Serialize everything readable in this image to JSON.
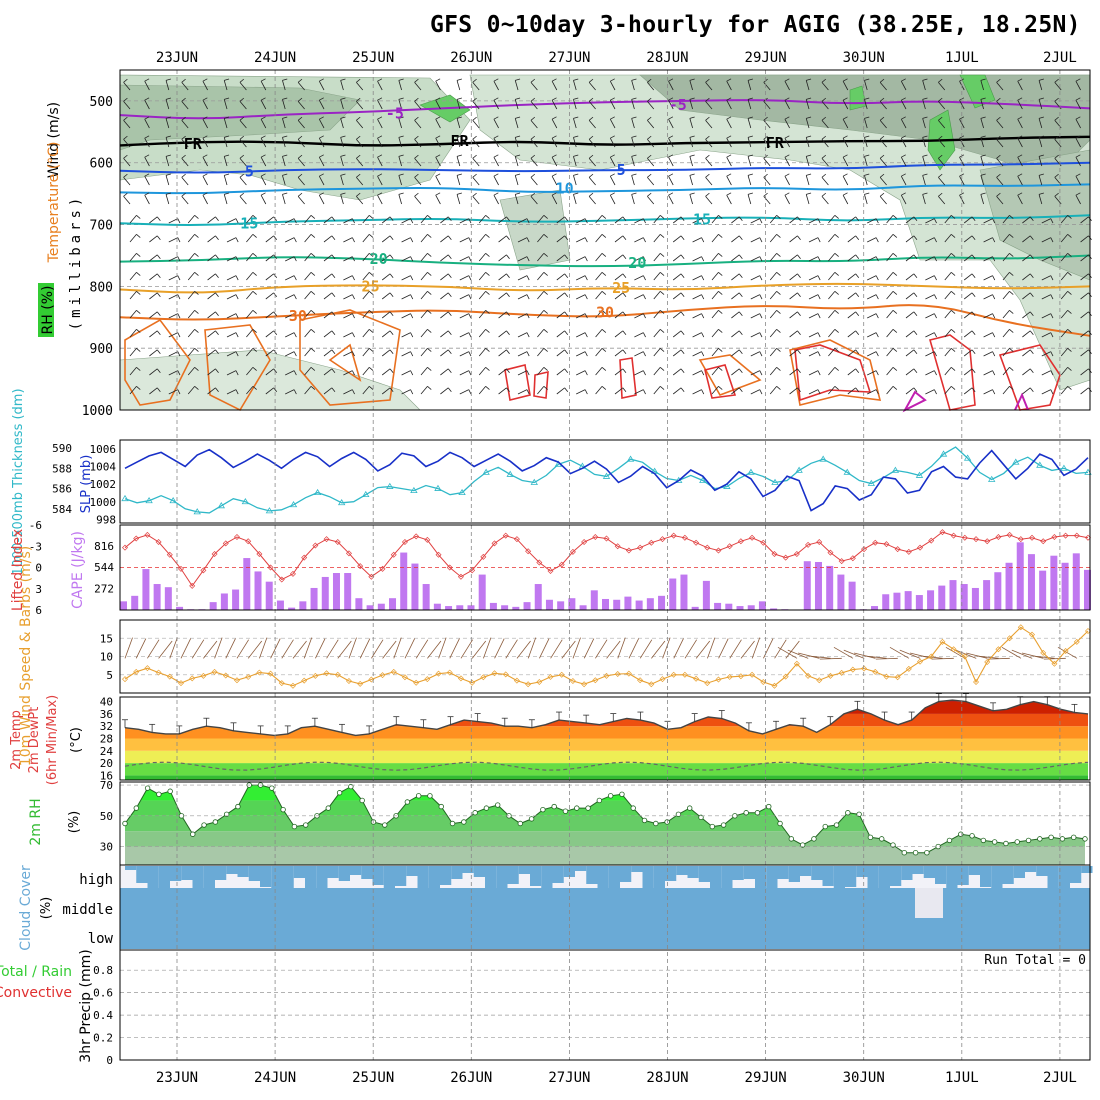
{
  "title": "GFS 0~10day 3-hourly for AGIG (38.25E, 18.25N)",
  "chart_data": {
    "type": "meteogram",
    "dates": [
      "23JUN",
      "24JUN",
      "25JUN",
      "26JUN",
      "27JUN",
      "28JUN",
      "29JUN",
      "30JUN",
      "1JUL",
      "2JUL"
    ],
    "panels": {
      "upper": {
        "ylabel_wind": "Wind (m/s)",
        "ylabel_temp": "Temperature (°C)",
        "ylabel_rh": "RH (%)",
        "ylabel_p": "(millibars)",
        "y_ticks": [
          "500",
          "600",
          "700",
          "800",
          "900",
          "1000"
        ],
        "contours": [
          {
            "label": "-5",
            "color": "#9a24c4",
            "p": [
              523,
              530,
              522,
              518,
              512,
              506,
              502,
              500,
              498,
              505,
              500,
              505,
              512
            ]
          },
          {
            "label": "FR",
            "color": "#000000",
            "p": [
              572,
              566,
              566,
              573,
              570,
              565,
              572,
              568,
              567,
              565,
              565,
              560,
              558
            ]
          },
          {
            "label": "5",
            "color": "#1e50dc",
            "p": [
              613,
              617,
              612,
              610,
              612,
              614,
              612,
              612,
              608,
              610,
              603,
              603,
              600
            ]
          },
          {
            "label": "10",
            "color": "#1e96dc",
            "p": [
              648,
              650,
              644,
              642,
              640,
              648,
              646,
              644,
              640,
              645,
              636,
              638,
              635
            ]
          },
          {
            "label": "15",
            "color": "#18b0b8",
            "p": [
              698,
              702,
              695,
              693,
              690,
              696,
              694,
              690,
              688,
              695,
              688,
              690,
              685
            ]
          },
          {
            "label": "20",
            "color": "#18b080",
            "p": [
              760,
              758,
              752,
              755,
              762,
              766,
              768,
              764,
              758,
              760,
              752,
              756,
              750
            ]
          },
          {
            "label": "25",
            "color": "#e8a028",
            "p": [
              805,
              812,
              800,
              798,
              800,
              808,
              802,
              806,
              798,
              795,
              800,
              804,
              800
            ]
          },
          {
            "label": "30",
            "color": "#e87020",
            "p": [
              850,
              855,
              848,
              842,
              838,
              846,
              850,
              838,
              830,
              838,
              826,
              860,
              880
            ]
          }
        ],
        "contour_labels": [
          {
            "text": "-5",
            "i": 3.4,
            "p": 520
          },
          {
            "text": "-5",
            "i": 6.9,
            "p": 507
          },
          {
            "text": "FR",
            "i": 0.9,
            "p": 570
          },
          {
            "text": "FR",
            "i": 4.2,
            "p": 565
          },
          {
            "text": "FR",
            "i": 8.1,
            "p": 568
          },
          {
            "text": "5",
            "i": 1.6,
            "p": 614
          },
          {
            "text": "5",
            "i": 6.2,
            "p": 612
          },
          {
            "text": "10",
            "i": 5.5,
            "p": 642
          },
          {
            "text": "15",
            "i": 1.6,
            "p": 698
          },
          {
            "text": "15",
            "i": 7.2,
            "p": 692
          },
          {
            "text": "20",
            "i": 3.2,
            "p": 756
          },
          {
            "text": "20",
            "i": 6.4,
            "p": 762
          },
          {
            "text": "25",
            "i": 3.1,
            "p": 800
          },
          {
            "text": "25",
            "i": 6.2,
            "p": 803
          },
          {
            "text": "30",
            "i": 2.2,
            "p": 848
          },
          {
            "text": "30",
            "i": 6.0,
            "p": 842
          }
        ]
      },
      "thickness_slp": {
        "ylabel_left": "1000-500mb Thickness (dm)",
        "ylabel_right": "SLP (mb)",
        "left_ticks": [
          "590",
          "588",
          "586",
          "584"
        ],
        "right_ticks": [
          "1006",
          "1004",
          "1002",
          "1000",
          "998"
        ],
        "slp": [
          1003.8,
          1004.5,
          1005.2,
          1005.6,
          1004.8,
          1004.0,
          1005.3,
          1005.9,
          1005.0,
          1003.9,
          1004.6,
          1005.4,
          1004.7,
          1003.8,
          1004.8,
          1005.6,
          1005.1,
          1004.0,
          1004.9,
          1005.6,
          1004.8,
          1003.5,
          1004.2,
          1005.5,
          1005.2,
          1004.0,
          1004.6,
          1005.6,
          1005.0,
          1004.0,
          1004.7,
          1005.4,
          1004.6,
          1003.5,
          1004.1,
          1005.0,
          1004.5,
          1003.2,
          1003.8,
          1004.6,
          1003.7,
          1002.2,
          1002.9,
          1004.0,
          1003.2,
          1001.6,
          1002.4,
          1003.6,
          1002.9,
          1001.3,
          1002.0,
          1003.4,
          1002.6,
          1000.6,
          1001.3,
          1002.9,
          1002.4,
          999.0,
          999.8,
          1001.8,
          1001.5,
          1000.2,
          1000.8,
          1002.8,
          1002.6,
          1001.0,
          1001.3,
          1003.4,
          1004.0,
          1002.8,
          1002.6,
          1004.4,
          1005.8,
          1004.2,
          1002.6,
          1003.8,
          1005.4,
          1004.8,
          1003.0,
          1003.7,
          1005.0
        ],
        "thickness": [
          585.0,
          584.6,
          584.8,
          585.3,
          584.8,
          584.0,
          583.7,
          583.6,
          584.3,
          585.0,
          584.7,
          584.1,
          583.8,
          583.9,
          584.4,
          585.1,
          585.6,
          585.2,
          584.6,
          584.7,
          585.4,
          586.1,
          586.2,
          586.0,
          585.8,
          586.3,
          586.0,
          585.4,
          585.6,
          586.7,
          587.6,
          588.1,
          587.4,
          586.8,
          586.6,
          587.3,
          588.4,
          588.8,
          588.2,
          587.4,
          587.2,
          588.0,
          588.9,
          588.6,
          587.7,
          587.0,
          586.8,
          587.3,
          586.8,
          586.0,
          586.2,
          587.0,
          587.6,
          587.2,
          586.6,
          586.8,
          587.8,
          588.5,
          588.9,
          588.3,
          587.6,
          586.8,
          586.5,
          587.1,
          587.8,
          587.6,
          587.3,
          588.2,
          589.4,
          590.1,
          589.0,
          587.6,
          586.9,
          587.5,
          588.6,
          589.1,
          588.3,
          587.8,
          588.0,
          587.5,
          587.6
        ]
      },
      "cape_li": {
        "ylabel_left": "Lifted Index",
        "ylabel_right": "CAPE (J/kg)",
        "left_ticks": [
          "-6",
          "-3",
          "0",
          "3",
          "6"
        ],
        "right_ticks": [
          "816",
          "544",
          "272"
        ],
        "cape": [
          110,
          180,
          520,
          330,
          290,
          40,
          10,
          10,
          100,
          210,
          260,
          660,
          490,
          360,
          120,
          30,
          110,
          280,
          420,
          470,
          470,
          150,
          60,
          80,
          150,
          730,
          590,
          330,
          80,
          50,
          60,
          60,
          450,
          90,
          60,
          40,
          100,
          330,
          130,
          110,
          150,
          60,
          250,
          140,
          130,
          170,
          120,
          150,
          180,
          400,
          450,
          40,
          370,
          90,
          80,
          50,
          60,
          110,
          20,
          10,
          0,
          620,
          610,
          560,
          450,
          360,
          10,
          50,
          200,
          220,
          240,
          190,
          250,
          310,
          380,
          330,
          280,
          380,
          480,
          600,
          860,
          710,
          500,
          690,
          600,
          720,
          510
        ],
        "li": [
          -2.8,
          -4.1,
          -4.6,
          -3.6,
          -1.8,
          0.2,
          2.6,
          0.4,
          -1.9,
          -3.4,
          -4.3,
          -3.7,
          -1.9,
          0.0,
          1.7,
          0.9,
          -1.4,
          -3.1,
          -4.0,
          -3.6,
          -2.0,
          -0.2,
          1.3,
          0.2,
          -1.8,
          -3.6,
          -4.4,
          -3.9,
          -1.8,
          0.0,
          1.3,
          0.4,
          -1.5,
          -3.4,
          -4.5,
          -4.0,
          -2.3,
          -0.7,
          0.5,
          -0.4,
          -2.2,
          -3.6,
          -4.3,
          -4.1,
          -3.0,
          -2.4,
          -2.8,
          -3.5,
          -4.0,
          -4.5,
          -4.2,
          -3.5,
          -2.8,
          -2.4,
          -3.0,
          -3.7,
          -4.2,
          -3.5,
          -1.9,
          -1.4,
          -1.9,
          -3.2,
          -3.6,
          -2.1,
          -0.9,
          -1.3,
          -2.6,
          -3.5,
          -3.3,
          -2.6,
          -2.2,
          -2.8,
          -3.8,
          -5.0,
          -4.5,
          -4.2,
          -4.0,
          -3.7,
          -4.3,
          -4.6,
          -4.0,
          -4.2,
          -3.7,
          -4.3,
          -4.5,
          -4.5,
          -4.2
        ]
      },
      "wind10m": {
        "ylabel": "10m Wind Speed & Barbs (m/s)",
        "y_ticks": [
          "15",
          "10",
          "5"
        ],
        "speed": [
          3.8,
          5.8,
          6.8,
          5.6,
          4.5,
          2.7,
          4.0,
          4.7,
          5.8,
          4.8,
          3.5,
          4.4,
          5.6,
          5.3,
          2.7,
          2.0,
          3.4,
          4.7,
          5.4,
          5.0,
          3.3,
          2.5,
          3.7,
          4.9,
          5.8,
          4.3,
          2.8,
          3.8,
          5.3,
          5.6,
          4.0,
          2.8,
          4.3,
          5.4,
          5.1,
          3.4,
          2.4,
          3.0,
          4.4,
          5.0,
          3.3,
          2.4,
          3.5,
          4.7,
          5.2,
          5.3,
          3.5,
          2.4,
          3.8,
          5.0,
          5.0,
          3.9,
          2.7,
          3.7,
          4.4,
          4.6,
          5.0,
          3.0,
          2.0,
          4.5,
          8.0,
          4.7,
          3.5,
          4.7,
          5.5,
          6.4,
          6.7,
          5.8,
          4.5,
          4.3,
          6.6,
          8.6,
          10.0,
          14.0,
          12.0,
          10.0,
          3.0,
          8.5,
          12.0,
          15.0,
          18.0,
          16.0,
          11.0,
          8.0,
          11.5,
          14.0,
          17.0
        ]
      },
      "temp2m": {
        "ylabel": "2m Temp 2m DewPt (6hr Min/Max) (°C)",
        "y_ticks": [
          "40",
          "36",
          "32",
          "28",
          "24",
          "20",
          "16"
        ],
        "temp": [
          31.5,
          31.0,
          30.0,
          29.5,
          29.5,
          31.0,
          32.0,
          31.5,
          30.5,
          30.0,
          29.5,
          29.0,
          29.5,
          31.5,
          32.0,
          31.0,
          30.0,
          29.0,
          29.5,
          31.0,
          32.5,
          32.0,
          31.5,
          31.0,
          32.5,
          34.0,
          33.5,
          33.0,
          32.0,
          32.0,
          31.5,
          32.5,
          34.0,
          33.5,
          33.0,
          32.5,
          33.5,
          34.5,
          34.0,
          33.0,
          31.0,
          31.5,
          33.5,
          35.0,
          34.5,
          33.0,
          30.5,
          29.5,
          31.0,
          32.5,
          32.0,
          30.0,
          32.5,
          36.0,
          37.5,
          36.0,
          34.0,
          32.5,
          34.0,
          38.0,
          40.0,
          40.5,
          40.0,
          38.5,
          37.0,
          37.5,
          39.0,
          40.0,
          39.0,
          37.5,
          36.5,
          36.0
        ]
      },
      "rh2m": {
        "ylabel": "2m RH (%)",
        "y_ticks": [
          "70",
          "50",
          "30"
        ],
        "rh": [
          45,
          55,
          68,
          64,
          66,
          50,
          38,
          44,
          46,
          51,
          56,
          70,
          70,
          68,
          54,
          43,
          44,
          50,
          55,
          65,
          69,
          60,
          46,
          44,
          50,
          59,
          63,
          63,
          56,
          45,
          46,
          52,
          55,
          57,
          50,
          45,
          48,
          54,
          56,
          53,
          55,
          55,
          60,
          63,
          64,
          55,
          47,
          45,
          46,
          51,
          55,
          49,
          43,
          44,
          50,
          52,
          52,
          56,
          45,
          35,
          31,
          35,
          43,
          44,
          52,
          51,
          36,
          35,
          31,
          26,
          26,
          26,
          30,
          34,
          38,
          37,
          34,
          33,
          32,
          33,
          34,
          35,
          36,
          35,
          36,
          35
        ]
      },
      "cloud": {
        "ylabel": "Cloud Cover (%)",
        "levels": [
          "high",
          "middle",
          "low"
        ]
      },
      "precip": {
        "ylabel": "3hr Precip (mm)",
        "legend_total": "Total / Rain",
        "legend_conv": "Convective",
        "y_ticks": [
          "0.8",
          "0.6",
          "0.4",
          "0.2",
          "0"
        ],
        "run_total": "Run Total = 0"
      }
    }
  }
}
